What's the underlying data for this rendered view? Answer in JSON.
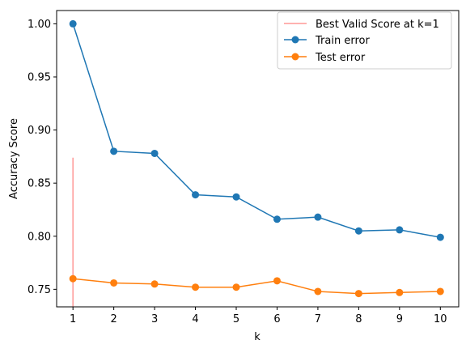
{
  "chart_data": {
    "type": "line",
    "title": "",
    "xlabel": "k",
    "ylabel": "Accuracy Score",
    "xlim": [
      0.6,
      10.45
    ],
    "ylim": [
      0.7335,
      1.0125
    ],
    "x": [
      1,
      2,
      3,
      4,
      5,
      6,
      7,
      8,
      9,
      10
    ],
    "x_ticks": [
      "1",
      "2",
      "3",
      "4",
      "5",
      "6",
      "7",
      "8",
      "9",
      "10"
    ],
    "y_ticks": [
      0.75,
      0.8,
      0.85,
      0.9,
      0.95,
      1.0
    ],
    "y_tick_labels": [
      "0.75",
      "0.80",
      "0.85",
      "0.90",
      "0.95",
      "1.00"
    ],
    "grid": false,
    "legend_position": "top-right",
    "vline": {
      "name": "Best Valid Score at k=1",
      "x": 1,
      "y_from": 0.7335,
      "y_to": 0.874,
      "color": "#ff9896"
    },
    "series": [
      {
        "name": "Train error",
        "color": "#1f77b4",
        "values": [
          1.0,
          0.88,
          0.878,
          0.839,
          0.837,
          0.816,
          0.818,
          0.805,
          0.806,
          0.799
        ]
      },
      {
        "name": "Test error",
        "color": "#ff7f0e",
        "values": [
          0.76,
          0.756,
          0.755,
          0.752,
          0.752,
          0.758,
          0.748,
          0.746,
          0.747,
          0.748
        ]
      }
    ]
  }
}
